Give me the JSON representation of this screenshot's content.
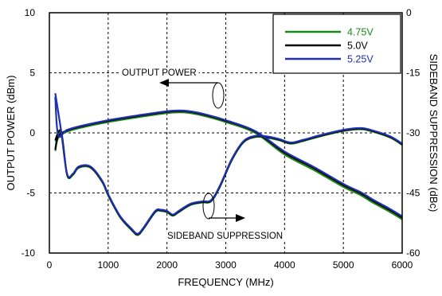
{
  "chart_data": {
    "type": "line",
    "xlabel": "FREQUENCY (MHz)",
    "ylabel": "OUTPUT POWER (dBm)",
    "y2label": "SIDEBAND SUPPRESSION (dBc)",
    "xlim": [
      0,
      6000
    ],
    "ylim": [
      -10,
      10
    ],
    "y2lim": [
      -60,
      0
    ],
    "xticks": [
      "0",
      "1000",
      "2000",
      "3000",
      "4000",
      "5000",
      "6000"
    ],
    "yticks": [
      "10",
      "5",
      "0",
      "-5",
      "-10"
    ],
    "y2ticks": [
      "0",
      "-15",
      "-30",
      "-45",
      "-60"
    ],
    "grid": "dashed",
    "legend_position": "top-right",
    "annotations": {
      "output_power": "OUTPUT POWER",
      "sideband": "SIDEBAND SUPPRESSION"
    },
    "series": [
      {
        "name": "4.75V",
        "color": "#1a8a1a",
        "power_x": [
          100,
          150,
          300,
          600,
          1000,
          1500,
          2000,
          2300,
          2600,
          3000,
          3500,
          4000,
          4500,
          5000,
          5300,
          5500,
          5800,
          6000
        ],
        "power_y": [
          -1.5,
          -0.4,
          0.1,
          0.5,
          0.9,
          1.3,
          1.65,
          1.7,
          1.45,
          0.9,
          0.0,
          -1.8,
          -3.1,
          -4.5,
          -5.2,
          -5.8,
          -6.6,
          -7.2
        ],
        "supp_x": [
          100,
          200,
          300,
          400,
          500,
          700,
          900,
          1000,
          1200,
          1400,
          1500,
          1600,
          1800,
          1900,
          2000,
          2100,
          2200,
          2400,
          2600,
          2750,
          2900,
          3100,
          3300,
          3500,
          3700,
          3900,
          4100,
          4300,
          4600,
          5000,
          5300,
          5500,
          5800,
          6000
        ],
        "supp_y": [
          -0.7,
          0.0,
          -3.5,
          -3.5,
          -2.9,
          -2.9,
          -4.1,
          -5.2,
          -7.0,
          -8.1,
          -8.5,
          -8.0,
          -6.6,
          -6.5,
          -6.6,
          -6.9,
          -6.6,
          -6.0,
          -5.8,
          -5.7,
          -4.5,
          -2.3,
          -0.8,
          -0.35,
          -0.4,
          -0.6,
          -0.9,
          -0.7,
          -0.3,
          0.15,
          0.3,
          0.1,
          -0.4,
          -1.0
        ]
      },
      {
        "name": "5.0V",
        "color": "#000000",
        "power_x": [
          100,
          150,
          300,
          600,
          1000,
          1500,
          2000,
          2300,
          2600,
          3000,
          3500,
          4000,
          4500,
          5000,
          5300,
          5500,
          5800,
          6000
        ],
        "power_y": [
          -1.4,
          -0.3,
          0.2,
          0.6,
          1.0,
          1.4,
          1.75,
          1.8,
          1.55,
          1.0,
          0.1,
          -1.65,
          -2.95,
          -4.35,
          -5.05,
          -5.65,
          -6.45,
          -7.05
        ],
        "supp_x": [
          100,
          200,
          300,
          400,
          500,
          700,
          900,
          1000,
          1200,
          1400,
          1500,
          1600,
          1800,
          1900,
          2000,
          2100,
          2200,
          2400,
          2600,
          2750,
          2900,
          3100,
          3300,
          3500,
          3700,
          3900,
          4100,
          4300,
          4600,
          5000,
          5300,
          5500,
          5800,
          6000
        ],
        "supp_y": [
          -0.6,
          0.1,
          -3.45,
          -3.45,
          -2.85,
          -2.85,
          -4.05,
          -5.15,
          -6.95,
          -8.05,
          -8.45,
          -7.95,
          -6.55,
          -6.45,
          -6.55,
          -6.85,
          -6.55,
          -5.95,
          -5.75,
          -5.65,
          -4.45,
          -2.25,
          -0.75,
          -0.3,
          -0.35,
          -0.55,
          -0.85,
          -0.65,
          -0.25,
          0.2,
          0.35,
          0.15,
          -0.35,
          -0.95
        ]
      },
      {
        "name": "5.25V",
        "color": "#1f2fb0",
        "power_x": [
          100,
          150,
          300,
          600,
          1000,
          1500,
          2000,
          2300,
          2600,
          3000,
          3500,
          4000,
          4500,
          5000,
          5300,
          5500,
          5800,
          6000
        ],
        "power_y": [
          3.0,
          -0.2,
          0.25,
          0.65,
          1.05,
          1.45,
          1.8,
          1.85,
          1.6,
          1.05,
          0.15,
          -1.55,
          -2.85,
          -4.25,
          -4.95,
          -5.55,
          -6.35,
          -6.95
        ],
        "supp_x": [
          100,
          200,
          300,
          400,
          500,
          700,
          900,
          1000,
          1200,
          1400,
          1500,
          1600,
          1800,
          1900,
          2000,
          2100,
          2200,
          2400,
          2600,
          2750,
          2900,
          3100,
          3300,
          3500,
          3700,
          3900,
          4100,
          4300,
          4600,
          5000,
          5300,
          5500,
          5800,
          6000
        ],
        "supp_y": [
          3.3,
          0.15,
          -3.4,
          -3.4,
          -2.8,
          -2.8,
          -4.0,
          -5.1,
          -6.9,
          -8.0,
          -8.4,
          -7.9,
          -6.5,
          -6.4,
          -6.5,
          -6.8,
          -6.5,
          -5.9,
          -5.7,
          -5.6,
          -4.4,
          -2.2,
          -0.7,
          -0.25,
          -0.3,
          -0.5,
          -0.8,
          -0.6,
          -0.2,
          0.25,
          0.4,
          0.2,
          -0.3,
          -0.9
        ]
      }
    ]
  }
}
